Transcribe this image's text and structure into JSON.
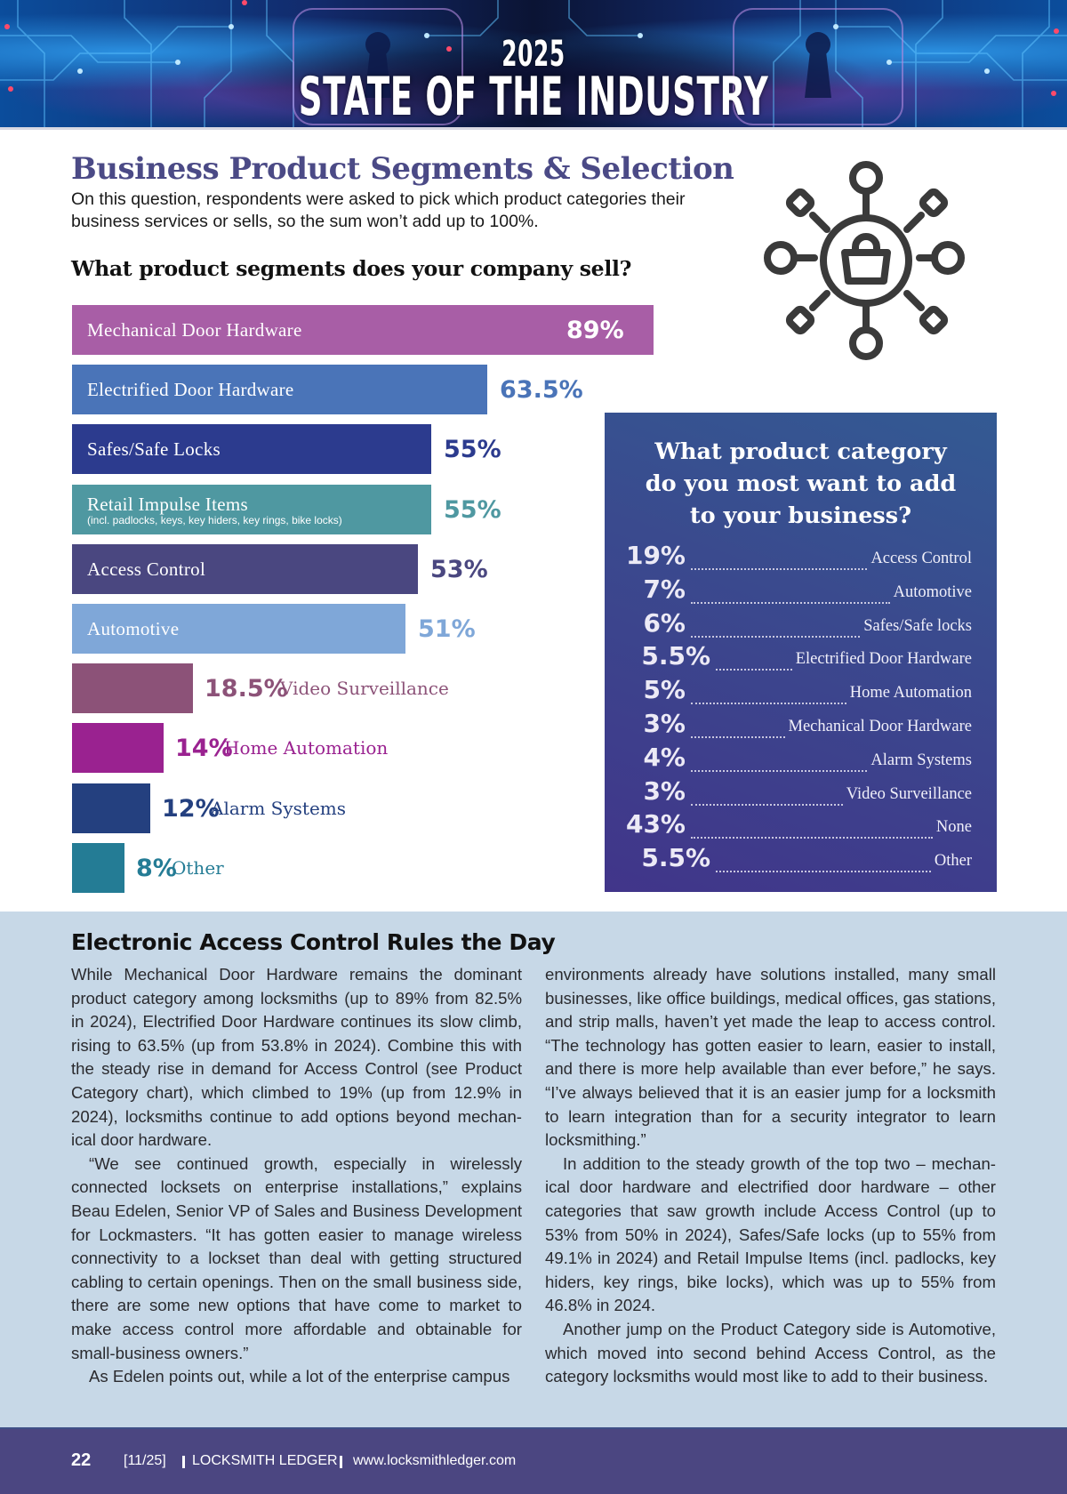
{
  "banner": {
    "year": "2025",
    "title": "STATE OF THE INDUSTRY"
  },
  "header": {
    "title": "Business Product Segments & Selection",
    "intro": "On this question, respondents were asked to pick which product categories their business services or sells, so the sum won’t add up to 100%.",
    "question": "What product segments does your company sell?",
    "icon": "network-hub-shopping-basket-icon"
  },
  "colors": {
    "title_purple": "#4b4a86",
    "panel_bg": "#3a4a8e",
    "article_bg": "#c7d8e7",
    "footer_bg": "#4b4681"
  },
  "chart_data": [
    {
      "type": "bar",
      "orientation": "horizontal",
      "title": "What product segments does your company sell?",
      "unit": "%",
      "xlim": [
        0,
        100
      ],
      "grid": false,
      "categories": [
        "Mechanical Door Hardware",
        "Electrified Door Hardware",
        "Safes/Safe Locks",
        "Retail Impulse Items",
        "Access Control",
        "Automotive",
        "Video Surveillance",
        "Home Automation",
        "Alarm Systems",
        "Other"
      ],
      "values": [
        89,
        63.5,
        55,
        55,
        53,
        51,
        18.5,
        14,
        12,
        8
      ],
      "value_labels": [
        "89%",
        "63.5%",
        "55%",
        "55%",
        "53%",
        "51%",
        "18.5%",
        "14%",
        "12%",
        "8%"
      ],
      "sublabels": [
        "",
        "",
        "",
        "(incl. padlocks, keys, key hiders, key rings, bike locks)",
        "",
        "",
        "",
        "",
        "",
        ""
      ],
      "colors": [
        "#a85ea6",
        "#4a74b8",
        "#2c3b8e",
        "#4f98a1",
        "#4a4780",
        "#7fa7d8",
        "#8c5278",
        "#9a2290",
        "#24407f",
        "#247c95"
      ],
      "value_colors": [
        "#ffffff",
        "#4a74b8",
        "#2c3b8e",
        "#4f98a1",
        "#4a4780",
        "#7fa7d8",
        "#8c5278",
        "#9a2290",
        "#24407f",
        "#247c95"
      ]
    },
    {
      "type": "table",
      "title": "What product category do you most want to add to your business?",
      "unit": "%",
      "rows": [
        {
          "value": 19,
          "label": "19%",
          "category": "Access Control"
        },
        {
          "value": 7,
          "label": "7%",
          "category": "Automotive"
        },
        {
          "value": 6,
          "label": "6%",
          "category": "Safes/Safe locks"
        },
        {
          "value": 5.5,
          "label": "5.5%",
          "category": "Electrified Door Hardware"
        },
        {
          "value": 5,
          "label": "5%",
          "category": "Home Automation"
        },
        {
          "value": 3,
          "label": "3%",
          "category": "Mechanical Door Hardware"
        },
        {
          "value": 4,
          "label": "4%",
          "category": "Alarm Systems"
        },
        {
          "value": 3,
          "label": "3%",
          "category": "Video Surveillance"
        },
        {
          "value": 43,
          "label": "43%",
          "category": "None"
        },
        {
          "value": 5.5,
          "label": "5.5%",
          "category": "Other"
        }
      ]
    }
  ],
  "panel": {
    "title_lines": [
      "What product category",
      "do you most want to add",
      "to your business?"
    ]
  },
  "article": {
    "title": "Electronic Access Control Rules the Day",
    "left_paragraphs": [
      "While Mechanical Door Hardware remains the dominant product category among locksmiths (up to 89% from 82.5% in 2024), Electrified Door Hardware continues its slow climb, rising to 63.5% (up from 53.8% in 2024). Combine this with the steady rise in demand for Access Control (see Product Category chart), which climbed to 19% (up from 12.9% in 2024), locksmiths continue to add options beyond mechan­ical door hardware.",
      "“We see continued growth, especially in wirelessly connected locksets on enterprise installations,” explains Beau Edelen, Senior VP of Sales and Business Develop­ment for Lockmasters. “It has gotten easier to manage wireless connectivity to a lockset than deal with getting structured cabling to certain openings. Then on the small business side, there are some new options that have come to market to make access control more affordable and obtainable for small-business owners.”",
      "As Edelen points out, while a lot of the enterprise campus"
    ],
    "right_paragraphs": [
      "environments already have solutions installed, many small businesses, like office buildings, medical offices, gas stations, and strip malls, haven’t yet made the leap to access control. “The technology has gotten easier to learn, easier to install, and there is more help available than ever before,” he says. “I’ve always believed that it is an easier jump for a lock­smith to learn integration than for a security integrator to learn locksmithing.”",
      "In addition to the steady growth of the top two – mechan­ical door hardware and electrified door hardware – other categories that saw growth include Access Control (up to 53% from 50% in 2024), Safes/Safe locks (up to 55% from 49.1% in 2024) and Retail Impulse Items (incl. padlocks, key hiders, key rings, bike locks), which was up to 55% from 46.8% in 2024.",
      "Another jump on the Product Category side is Automo­tive, which moved into second behind Access Control, as the category locksmiths would most like to add to their business."
    ]
  },
  "footer": {
    "page_number": "22",
    "issue": "[11/25]",
    "publication": "LOCKSMITH LEDGER",
    "url": "www.locksmithledger.com"
  }
}
